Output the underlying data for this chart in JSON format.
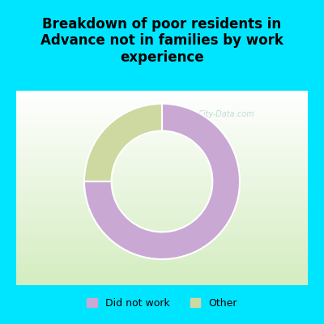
{
  "title": "Breakdown of poor residents in\nAdvance not in families by work\nexperience",
  "slices": [
    75,
    25
  ],
  "labels": [
    "Did not work",
    "Other"
  ],
  "colors": [
    "#c9a8d4",
    "#cdd9a0"
  ],
  "background_top": "#00e5ff",
  "chart_bg_gradient_start": "#ffffff",
  "chart_bg_gradient_end": "#d4edc0",
  "donut_width": 0.35,
  "watermark": "City-Data.com",
  "legend_marker_colors": [
    "#c9a8d4",
    "#cdd9a0"
  ]
}
